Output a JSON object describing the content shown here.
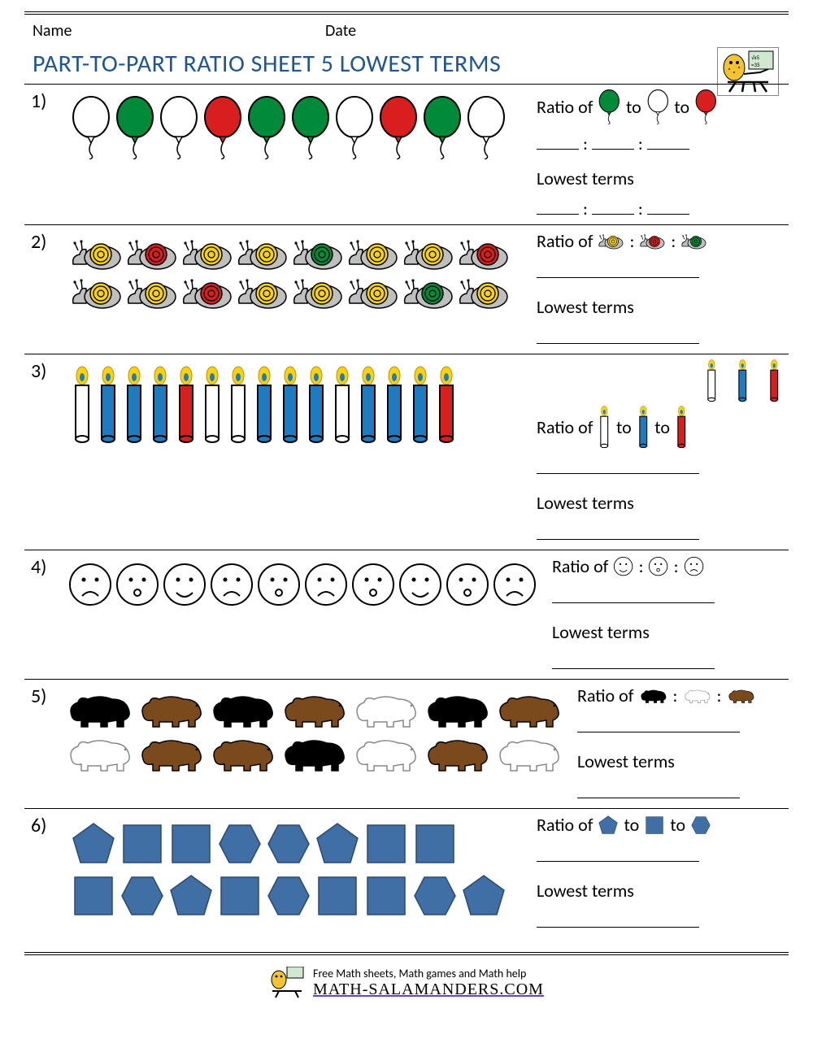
{
  "header": {
    "name_label": "Name",
    "date_label": "Date"
  },
  "title": "PART-TO-PART RATIO SHEET 5 LOWEST TERMS",
  "labels": {
    "ratio_of": "Ratio of",
    "to": "to",
    "colon": ":",
    "lowest_terms": "Lowest terms"
  },
  "colors": {
    "title": "#1f5597",
    "rule": "#000000",
    "green": "#008a3a",
    "white": "#ffffff",
    "red": "#d91e1e",
    "yellow": "#f7d308",
    "blue": "#1f7bbf",
    "shape_blue": "#3f6fa5",
    "black": "#000000",
    "brown": "#7a4a1c",
    "polar": "#ffffff",
    "outline": "#000000"
  },
  "problems": [
    {
      "num": "1)",
      "type": "balloons",
      "rows": [
        [
          "white",
          "green",
          "white",
          "red",
          "green",
          "green",
          "white",
          "red",
          "green",
          "white"
        ]
      ],
      "legend": [
        "green",
        "white",
        "red"
      ],
      "join": "to",
      "blank_style": "short-3"
    },
    {
      "num": "2)",
      "type": "snails",
      "rows": [
        [
          "yellow",
          "red",
          "yellow",
          "yellow",
          "green",
          "yellow",
          "yellow",
          "red"
        ],
        [
          "yellow",
          "yellow",
          "red",
          "yellow",
          "yellow",
          "yellow",
          "green",
          "yellow"
        ]
      ],
      "legend": [
        "yellow",
        "red",
        "green"
      ],
      "join": "colon",
      "blank_style": "long"
    },
    {
      "num": "3)",
      "type": "candles",
      "rows": [
        [
          "white",
          "blue",
          "blue",
          "blue",
          "red",
          "white",
          "white",
          "blue",
          "blue",
          "blue",
          "white",
          "blue",
          "blue",
          "blue",
          "red"
        ]
      ],
      "legend": [
        "white",
        "blue",
        "red"
      ],
      "join": "to",
      "blank_style": "long",
      "legend_above": true
    },
    {
      "num": "4)",
      "type": "faces",
      "rows": [
        [
          "sad",
          "surprised",
          "happy",
          "sad",
          "surprised",
          "sad",
          "surprised",
          "happy",
          "surprised",
          "sad"
        ]
      ],
      "legend": [
        "happy",
        "surprised",
        "sad"
      ],
      "join": "colon",
      "blank_style": "long"
    },
    {
      "num": "5)",
      "type": "bears",
      "rows": [
        [
          "black",
          "brown",
          "black",
          "brown",
          "polar",
          "black",
          "brown"
        ],
        [
          "polar",
          "brown",
          "brown",
          "black",
          "polar",
          "brown",
          "polar"
        ]
      ],
      "legend": [
        "black",
        "polar",
        "brown"
      ],
      "join": "colon",
      "blank_style": "long"
    },
    {
      "num": "6)",
      "type": "shapes",
      "rows": [
        [
          "pentagon",
          "square",
          "square",
          "hexagon",
          "hexagon",
          "pentagon",
          "square",
          "square"
        ],
        [
          "square",
          "hexagon",
          "pentagon",
          "square",
          "hexagon",
          "square",
          "square",
          "hexagon",
          "pentagon"
        ]
      ],
      "legend": [
        "pentagon",
        "square",
        "hexagon"
      ],
      "join": "to",
      "blank_style": "long"
    }
  ],
  "footer": {
    "tagline": "Free Math sheets, Math games and Math help",
    "site": "MATH-SALAMANDERS.COM"
  }
}
